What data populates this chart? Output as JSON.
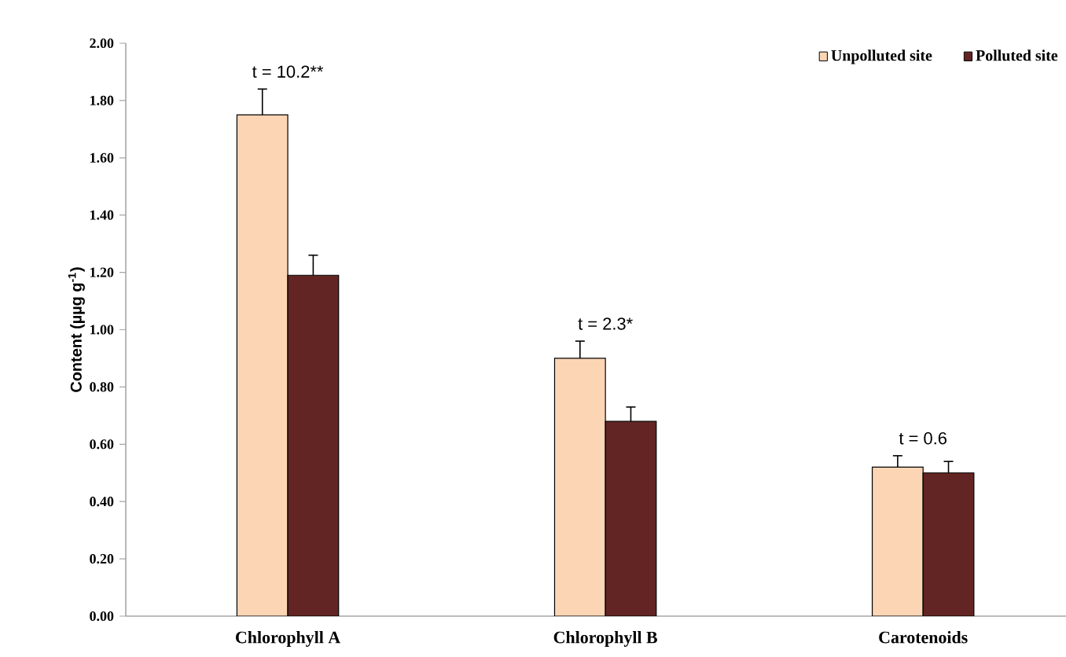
{
  "chart_data": {
    "type": "bar",
    "ylabel": "Content (µµg g$^{-1}$)",
    "categories": [
      "Chlorophyll A",
      "Chlorophyll B",
      "Carotenoids"
    ],
    "series": [
      {
        "name": "Unpolluted site",
        "color": "#fcd5b5",
        "values": [
          1.75,
          0.9,
          0.52
        ],
        "errors": [
          [
            1.75,
            1.84
          ],
          [
            0.9,
            0.96
          ],
          [
            0.52,
            0.56
          ]
        ]
      },
      {
        "name": "Polluted site",
        "color": "#632523",
        "values": [
          1.19,
          0.68,
          0.5
        ],
        "errors": [
          [
            1.19,
            1.26
          ],
          [
            0.68,
            0.73
          ],
          [
            0.5,
            0.54
          ]
        ]
      }
    ],
    "ylim": [
      0,
      2
    ],
    "yticks": [
      {
        "value": 0,
        "label": "0.00"
      },
      {
        "value": 0.2,
        "label": "0.20"
      },
      {
        "value": 0.4,
        "label": "0.40"
      },
      {
        "value": 0.6,
        "label": "0.60"
      },
      {
        "value": 0.8,
        "label": "0.80"
      },
      {
        "value": 1.0,
        "label": "1.00"
      },
      {
        "value": 1.2,
        "label": "1.20"
      },
      {
        "value": 1.4,
        "label": "1.40"
      },
      {
        "value": 1.6,
        "label": "1.60"
      },
      {
        "value": 1.8,
        "label": "1.80"
      },
      {
        "value": 2.0,
        "label": "2.00"
      }
    ],
    "annotations": [
      "t = 10.2**",
      "t = 2.3*",
      "t = 0.6"
    ],
    "grid": false,
    "legend": "top right"
  }
}
